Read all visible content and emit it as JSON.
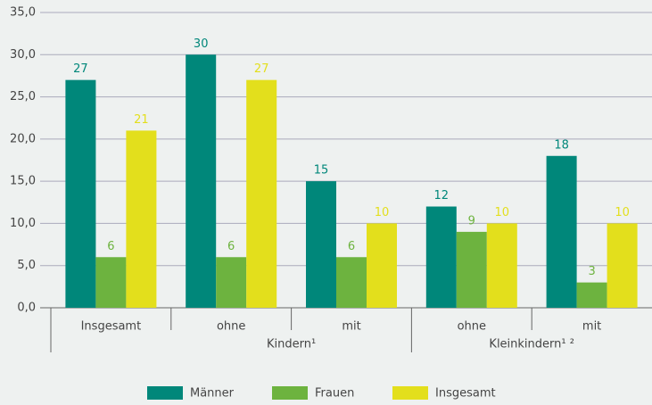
{
  "chart_data": {
    "type": "bar",
    "categories": [
      "Insgesamt",
      "ohne",
      "mit",
      "ohne",
      "mit"
    ],
    "group_labels": [
      "Kindern¹",
      "Kleinkindern¹ ²"
    ],
    "series": [
      {
        "name": "Männer",
        "color": "#00877a",
        "values": [
          27,
          30,
          15,
          12,
          18
        ]
      },
      {
        "name": "Frauen",
        "color": "#6db33f",
        "values": [
          6,
          6,
          6,
          9,
          3
        ]
      },
      {
        "name": "Insgesamt",
        "color": "#e3df1c",
        "values": [
          21,
          27,
          10,
          10,
          10
        ]
      }
    ],
    "ylim": [
      0,
      35
    ],
    "yticks": [
      {
        "value": 0,
        "label": "0,0"
      },
      {
        "value": 5,
        "label": "5,0"
      },
      {
        "value": 10,
        "label": "10,0"
      },
      {
        "value": 15,
        "label": "15,0"
      },
      {
        "value": 20,
        "label": "20,0"
      },
      {
        "value": 25,
        "label": "25,0"
      },
      {
        "value": 30,
        "label": "30,0"
      },
      {
        "value": 35,
        "label": "35,0"
      }
    ],
    "grid": true,
    "legend": "bottom"
  }
}
